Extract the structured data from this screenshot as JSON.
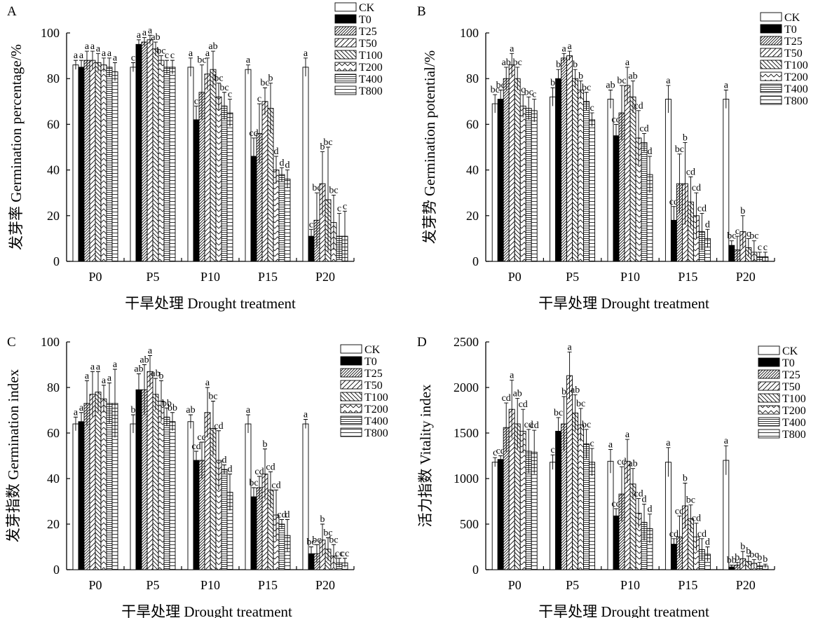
{
  "figure": {
    "legend_items": [
      "CK",
      "T0",
      "T25",
      "T50",
      "T100",
      "T200",
      "T400",
      "T800"
    ]
  },
  "styles": {
    "CK": "open",
    "T0": "solid",
    "T25": "dense-diagonal-right",
    "T50": "wide-diagonal-right",
    "T100": "diagonal-left",
    "T200": "zigzag",
    "T400": "dense-horizontal",
    "T800": "wide-horizontal"
  },
  "chart_data": [
    {
      "panel": "A",
      "type": "bar",
      "ylabel": "发芽率 Germination percentage/%",
      "xlabel": "干旱处理 Drought treatment",
      "ylim": [
        0,
        100
      ],
      "yticks": [
        0,
        20,
        40,
        60,
        80,
        100
      ],
      "categories": [
        "P0",
        "P5",
        "P10",
        "P15",
        "P20"
      ],
      "legend": "top-right",
      "series": [
        {
          "name": "CK",
          "values": [
            86,
            85,
            85,
            84,
            85
          ],
          "errors": [
            2,
            2,
            4,
            2,
            4
          ],
          "labels": [
            "a",
            "c",
            "a",
            "a",
            "a"
          ]
        },
        {
          "name": "T0",
          "values": [
            85,
            95,
            62,
            46,
            11
          ],
          "errors": [
            3,
            2,
            6,
            8,
            3
          ],
          "labels": [
            "a",
            "a",
            "c",
            "cd",
            "c"
          ]
        },
        {
          "name": "T25",
          "values": [
            88,
            96,
            74,
            56,
            18
          ],
          "errors": [
            4,
            2,
            12,
            13,
            12
          ],
          "labels": [
            "a",
            "a",
            "bc",
            "c",
            "bc"
          ]
        },
        {
          "name": "T50",
          "values": [
            88,
            97,
            82,
            70,
            34
          ],
          "errors": [
            4,
            2,
            7,
            6,
            14
          ],
          "labels": [
            "a",
            "a",
            "a",
            "bc",
            "b"
          ]
        },
        {
          "name": "T100",
          "values": [
            87,
            93,
            84,
            67,
            27
          ],
          "errors": [
            4,
            3,
            8,
            11,
            23
          ],
          "labels": [
            "a",
            "ab",
            "ab",
            "b",
            "bc"
          ]
        },
        {
          "name": "T200",
          "values": [
            86,
            88,
            72,
            40,
            17
          ],
          "errors": [
            3,
            2,
            6,
            6,
            12
          ],
          "labels": [
            "a",
            "bc",
            "bc",
            "d",
            "bc"
          ]
        },
        {
          "name": "T400",
          "values": [
            85,
            85,
            68,
            38,
            11
          ],
          "errors": [
            4,
            3,
            6,
            3,
            10
          ],
          "labels": [
            "a",
            "c",
            "bc",
            "d",
            "c"
          ]
        },
        {
          "name": "T800",
          "values": [
            83,
            85,
            65,
            36,
            11
          ],
          "errors": [
            4,
            3,
            6,
            4,
            11
          ],
          "labels": [
            "a",
            "c",
            "c",
            "d",
            "c"
          ]
        }
      ]
    },
    {
      "panel": "B",
      "type": "bar",
      "ylabel": "发芽势 Germination potential/%",
      "xlabel": "干旱处理 Drought treatment",
      "ylim": [
        0,
        100
      ],
      "yticks": [
        0,
        20,
        40,
        60,
        80,
        100
      ],
      "categories": [
        "P0",
        "P5",
        "P10",
        "P15",
        "P20"
      ],
      "legend": "top-right",
      "series": [
        {
          "name": "CK",
          "values": [
            69,
            72,
            71,
            71,
            71
          ],
          "errors": [
            4,
            4,
            4,
            6,
            4
          ],
          "labels": [
            "bc",
            "b",
            "ab",
            "a",
            "a"
          ]
        },
        {
          "name": "T0",
          "values": [
            71,
            80,
            55,
            18,
            7
          ],
          "errors": [
            4,
            4,
            5,
            6,
            2
          ],
          "labels": [
            "bc",
            "b",
            "cd",
            "cd",
            "bc"
          ]
        },
        {
          "name": "T25",
          "values": [
            80,
            89,
            65,
            34,
            5
          ],
          "errors": [
            5,
            2,
            12,
            13,
            6
          ],
          "labels": [
            "ab",
            "a",
            "bc",
            "bc",
            "c"
          ]
        },
        {
          "name": "T50",
          "values": [
            86,
            90,
            77,
            34,
            13
          ],
          "errors": [
            5,
            2,
            8,
            18,
            7
          ],
          "labels": [
            "a",
            "a",
            "a",
            "b",
            "b"
          ]
        },
        {
          "name": "T100",
          "values": [
            80,
            80,
            72,
            26,
            6
          ],
          "errors": [
            5,
            4,
            7,
            11,
            4
          ],
          "labels": [
            "bc",
            "b",
            "ab",
            "cd",
            "c"
          ]
        },
        {
          "name": "T200",
          "values": [
            68,
            75,
            54,
            20,
            4
          ],
          "errors": [
            5,
            4,
            12,
            10,
            5
          ],
          "labels": [
            "c",
            "b",
            "cd",
            "cd",
            "bc"
          ]
        },
        {
          "name": "T400",
          "values": [
            67,
            70,
            52,
            13,
            2
          ],
          "errors": [
            5,
            4,
            4,
            8,
            2
          ],
          "labels": [
            "bc",
            "bc",
            "cd",
            "cd",
            "c"
          ]
        },
        {
          "name": "T800",
          "values": [
            66,
            62,
            38,
            10,
            2
          ],
          "errors": [
            5,
            3,
            8,
            4,
            2
          ],
          "labels": [
            "c",
            "c",
            "d",
            "d",
            "c"
          ]
        }
      ]
    },
    {
      "panel": "C",
      "type": "bar",
      "ylabel": "发芽指数 Germination index",
      "xlabel": "干旱处理 Drought treatment",
      "ylim": [
        0,
        100
      ],
      "yticks": [
        0,
        20,
        40,
        60,
        80,
        100
      ],
      "categories": [
        "P0",
        "P5",
        "P10",
        "P15",
        "P20"
      ],
      "legend": "top-right",
      "series": [
        {
          "name": "CK",
          "values": [
            64,
            64,
            65,
            64,
            64
          ],
          "errors": [
            3,
            4,
            3,
            4,
            2
          ],
          "labels": [
            "a",
            "b",
            "ab",
            "a",
            "a"
          ]
        },
        {
          "name": "T0",
          "values": [
            65,
            79,
            48,
            32,
            7
          ],
          "errors": [
            4,
            7,
            4,
            4,
            3
          ],
          "labels": [
            "a",
            "ab",
            "cd",
            "bc",
            "bc"
          ]
        },
        {
          "name": "T25",
          "values": [
            73,
            79,
            48,
            36,
            7
          ],
          "errors": [
            10,
            11,
            8,
            5,
            4
          ],
          "labels": [
            "a",
            "ab",
            "cd",
            "cd",
            "bc"
          ]
        },
        {
          "name": "T50",
          "values": [
            77,
            87,
            69,
            42,
            13
          ],
          "errors": [
            10,
            7,
            11,
            11,
            7
          ],
          "labels": [
            "a",
            "a",
            "a",
            "b",
            "b"
          ]
        },
        {
          "name": "T100",
          "values": [
            78,
            77,
            62,
            35,
            9
          ],
          "errors": [
            9,
            7,
            12,
            8,
            5
          ],
          "labels": [
            "a",
            "ab",
            "bc",
            "cd",
            "bc"
          ]
        },
        {
          "name": "T200",
          "values": [
            75,
            74,
            48,
            24,
            6
          ],
          "errors": [
            6,
            9,
            13,
            11,
            5
          ],
          "labels": [
            "a",
            "b",
            "cd",
            "cd",
            "bc"
          ]
        },
        {
          "name": "T400",
          "values": [
            73,
            67,
            44,
            20,
            3
          ],
          "errors": [
            9,
            4,
            2,
            2,
            2
          ],
          "labels": [
            "a",
            "bb",
            "d",
            "cd",
            "cc"
          ]
        },
        {
          "name": "T800",
          "values": [
            73,
            65,
            34,
            15,
            3
          ],
          "errors": [
            15,
            4,
            8,
            7,
            2
          ],
          "labels": [
            "a",
            "bb",
            "d",
            "d",
            "cc"
          ]
        }
      ]
    },
    {
      "panel": "D",
      "type": "bar",
      "ylabel": "活力指数 Vitality index",
      "xlabel": "干旱处理 Drought treatment",
      "ylim": [
        0,
        2500
      ],
      "yticks": [
        0,
        500,
        1000,
        1500,
        2000,
        2500
      ],
      "categories": [
        "P0",
        "P5",
        "P10",
        "P15",
        "P20"
      ],
      "legend": "top-right",
      "series": [
        {
          "name": "CK",
          "values": [
            1180,
            1180,
            1190,
            1180,
            1200
          ],
          "errors": [
            50,
            80,
            130,
            160,
            160
          ],
          "labels": [
            "c",
            "c",
            "a",
            "a",
            "a"
          ]
        },
        {
          "name": "T0",
          "values": [
            1210,
            1520,
            590,
            280,
            30
          ],
          "errors": [
            40,
            150,
            80,
            60,
            20
          ],
          "labels": [
            "cd",
            "bc",
            "cd",
            "cd",
            "bb"
          ]
        },
        {
          "name": "T25",
          "values": [
            1560,
            1600,
            830,
            360,
            50
          ],
          "errors": [
            270,
            300,
            300,
            230,
            30
          ],
          "labels": [
            "cd",
            "b",
            "cd",
            "cd",
            "b"
          ]
        },
        {
          "name": "T50",
          "values": [
            1760,
            2130,
            1190,
            700,
            120
          ],
          "errors": [
            320,
            260,
            240,
            250,
            80
          ],
          "labels": [
            "a",
            "a",
            "a",
            "b",
            "b"
          ]
        },
        {
          "name": "T100",
          "values": [
            1600,
            1720,
            940,
            560,
            90
          ],
          "errors": [
            280,
            200,
            170,
            150,
            60
          ],
          "labels": [
            "ab",
            "ab",
            "ab",
            "bc",
            "b"
          ]
        },
        {
          "name": "T200",
          "values": [
            1520,
            1590,
            620,
            360,
            70
          ],
          "errors": [
            240,
            180,
            160,
            150,
            40
          ],
          "labels": [
            "cd",
            "bc",
            "cd",
            "cd",
            "bc"
          ]
        },
        {
          "name": "T400",
          "values": [
            1300,
            1380,
            520,
            220,
            40
          ],
          "errors": [
            240,
            160,
            200,
            120,
            40
          ],
          "labels": [
            "cd",
            "bc",
            "d",
            "cd",
            "b"
          ]
        },
        {
          "name": "T800",
          "values": [
            1290,
            1180,
            450,
            170,
            40
          ],
          "errors": [
            240,
            150,
            160,
            80,
            20
          ],
          "labels": [
            "cd",
            "c",
            "d",
            "d",
            "b"
          ]
        }
      ]
    }
  ]
}
